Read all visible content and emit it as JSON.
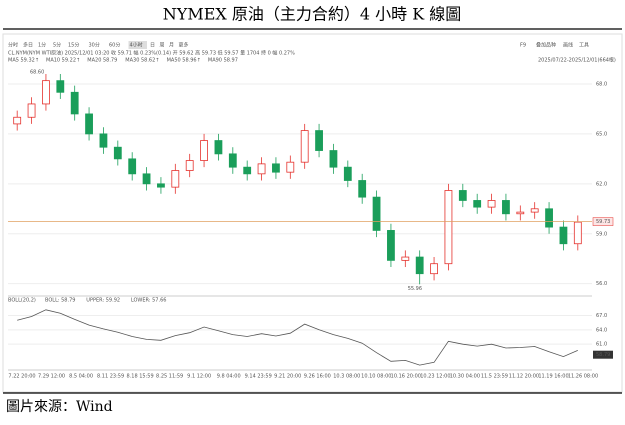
{
  "header": {
    "title": "NYMEX 原油（主力合約）4 小時 K 線圖"
  },
  "toolbar": {
    "periods": [
      "分时",
      "多日",
      "1分",
      "5分",
      "15分",
      "30分",
      "60分",
      "4小时",
      "日",
      "周",
      "月",
      "更多"
    ],
    "active_index": 7,
    "tools": [
      "F9",
      "叠加品种",
      "画线",
      "工具"
    ]
  },
  "info_line": "CL.NYM(NYM WTI原油)  2025/12/01 03:20  收 59.71  幅 0.23%(0.14)  开 59.62  高 59.73  低 59.57  量 1704  持 0  幅 0.27%",
  "ma_line": [
    {
      "text": "MA5 59.32↑",
      "color": "#333333"
    },
    {
      "text": "MA10 59.22↑",
      "color": "#e0a020"
    },
    {
      "text": "MA20 58.79",
      "color": "#c040c0"
    },
    {
      "text": "MA30 58.62↑",
      "color": "#20a0a0"
    },
    {
      "text": "MA50 58.96↑",
      "color": "#40a040"
    },
    {
      "text": "MA90 58.97",
      "color": "#3060d0"
    }
  ],
  "range_label": "2025/07/22-2025/12/01(664根)",
  "chart_data": {
    "type": "candlestick",
    "open": [
      65.6,
      66.0,
      66.8,
      68.2,
      67.5,
      66.2,
      65.0,
      64.2,
      63.5,
      62.6,
      62.0,
      61.8,
      62.8,
      63.4,
      64.6,
      63.8,
      63.0,
      62.6,
      63.2,
      62.7,
      63.3,
      65.2,
      64.0,
      63.0,
      62.2,
      61.2,
      59.2,
      57.4,
      57.6,
      56.6,
      57.2,
      61.6,
      61.0,
      60.6,
      61.0,
      60.2,
      60.3,
      60.5,
      59.4,
      58.4
    ],
    "high": [
      66.4,
      67.2,
      68.6,
      68.6,
      67.9,
      66.6,
      65.4,
      64.6,
      63.9,
      63.0,
      62.4,
      63.2,
      63.8,
      65.0,
      65.0,
      64.2,
      63.4,
      63.6,
      63.6,
      63.7,
      65.6,
      65.6,
      64.4,
      63.4,
      62.6,
      61.6,
      59.6,
      58.0,
      58.0,
      57.6,
      62.0,
      62.0,
      61.4,
      61.4,
      61.4,
      60.7,
      60.9,
      60.9,
      59.8,
      60.1
    ],
    "low": [
      65.2,
      65.6,
      66.4,
      67.1,
      65.8,
      64.6,
      63.8,
      63.1,
      62.2,
      61.6,
      61.4,
      61.4,
      62.4,
      63.0,
      63.4,
      62.6,
      62.2,
      62.2,
      62.3,
      62.3,
      62.9,
      63.6,
      62.6,
      61.8,
      60.8,
      58.8,
      57.0,
      57.0,
      55.96,
      56.2,
      56.8,
      60.6,
      60.2,
      60.2,
      59.8,
      59.8,
      59.9,
      59.0,
      58.0,
      58.0
    ],
    "close": [
      66.0,
      66.8,
      68.2,
      67.5,
      66.2,
      65.0,
      64.2,
      63.5,
      62.6,
      62.0,
      61.8,
      62.8,
      63.4,
      64.6,
      63.8,
      63.0,
      62.6,
      63.2,
      62.7,
      63.3,
      65.2,
      64.0,
      63.0,
      62.2,
      61.2,
      59.2,
      57.4,
      57.6,
      56.6,
      57.2,
      61.6,
      61.0,
      60.6,
      61.0,
      60.2,
      60.3,
      60.5,
      59.4,
      58.4,
      59.7
    ],
    "up_color": "#e5322d",
    "down_color": "#1a9e5a",
    "ylim": [
      55.5,
      69.2
    ],
    "yticks": [
      {
        "value": 68,
        "label": "68.0"
      },
      {
        "value": 65,
        "label": "65.0"
      },
      {
        "value": 62,
        "label": "62.0"
      },
      {
        "value": 59,
        "label": "59.0"
      },
      {
        "value": 56,
        "label": "56.0"
      }
    ],
    "x_labels": [
      "7.22 20:00",
      "7.29 12:00",
      "8.5 04:00",
      "8.11 23:59",
      "8.18 15:59",
      "8.25 11:59",
      "9.1 12:00",
      "9.8 04:00",
      "9.14 23:59",
      "9.21 20:00",
      "9.26 16:00",
      "10.3 08:00",
      "10.10 08:00",
      "10.16 20:00",
      "10.23 12:00",
      "10.30 04:00",
      "11.5 23:59",
      "11.12 20:00",
      "11.19 16:00",
      "11.26 08:00"
    ],
    "high_mark": {
      "value": 68.6,
      "label": "68.60"
    },
    "low_mark": 55.96,
    "last_price": {
      "value": 59.73,
      "label": "59.73"
    },
    "indicator": {
      "title": "BOLL(20,2)",
      "lines": [
        {
          "text": "BOLL: 58.79",
          "color": "#333333"
        },
        {
          "text": "UPPER: 59.92",
          "color": "#e5322d"
        },
        {
          "text": "LOWER: 57.66",
          "color": "#3060d0"
        }
      ],
      "ylim": [
        56,
        69
      ],
      "yticks": [
        {
          "value": 67,
          "label": "67.0"
        },
        {
          "value": 64,
          "label": "64.0"
        },
        {
          "value": 61,
          "label": "61.0"
        }
      ],
      "last": 58.79
    }
  },
  "footer": {
    "source": "圖片來源：Wind"
  }
}
